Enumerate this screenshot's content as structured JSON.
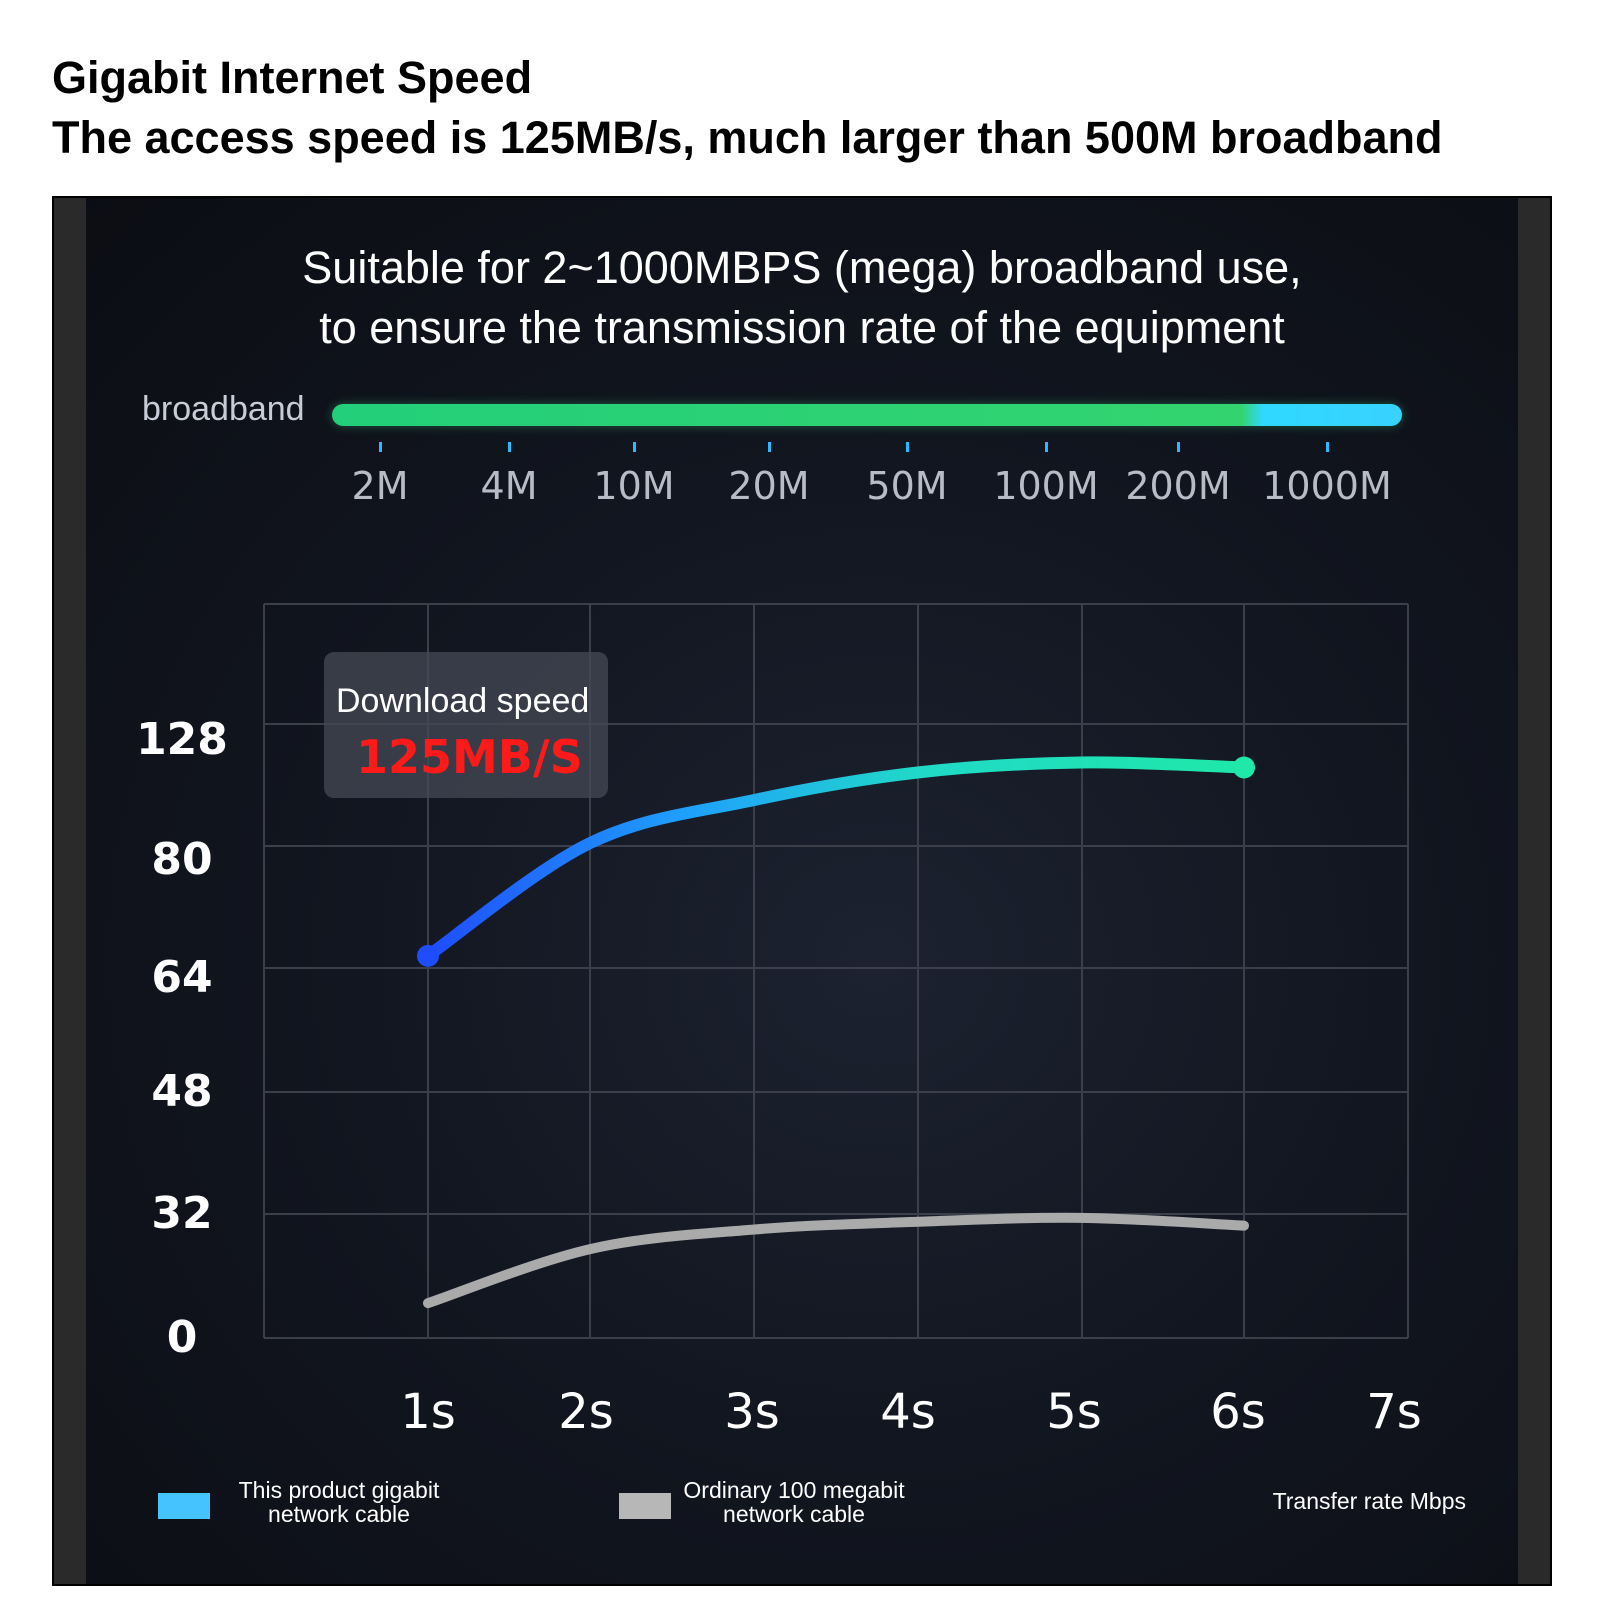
{
  "header": {
    "title": "Gigabit Internet Speed",
    "subtitle": "The access speed is 125MB/s, much larger than 500M broadband"
  },
  "panel": {
    "line1": "Suitable for 2~1000MBPS (mega) broadband use,",
    "line2": "to ensure the transmission rate of the equipment"
  },
  "broadband": {
    "label": "broadband",
    "ticks": [
      "2M",
      "4M",
      "10M",
      "20M",
      "50M",
      "100M",
      "200M",
      "1000M"
    ],
    "colors": {
      "main": "#2fd27a",
      "end": "#38d2ff"
    }
  },
  "tooltip": {
    "label": "Download speed",
    "value": "125MB/S"
  },
  "legend": {
    "gigabit": "This product gigabit\nnetwork cable",
    "ordinary": "Ordinary 100 megabit\nnetwork cable",
    "axis_note": "Transfer rate Mbps"
  },
  "chart_data": {
    "type": "line",
    "xlabel": "",
    "ylabel": "Transfer rate Mbps",
    "x_ticks": [
      "1s",
      "2s",
      "3s",
      "4s",
      "5s",
      "6s",
      "7s"
    ],
    "y_ticks": [
      "0",
      "32",
      "48",
      "64",
      "80",
      "128"
    ],
    "grid": true,
    "legend_position": "bottom",
    "series": [
      {
        "name": "This product gigabit network cable",
        "color": "#22e2b4",
        "x": [
          1,
          2,
          3,
          4,
          5,
          6
        ],
        "y": [
          67,
          87,
          104,
          115,
          119,
          117
        ]
      },
      {
        "name": "Ordinary 100 megabit network cable",
        "color": "#aaaaaa",
        "x": [
          1,
          2,
          3,
          4,
          5,
          6
        ],
        "y": [
          9,
          23,
          28,
          30,
          31,
          29
        ]
      }
    ]
  }
}
